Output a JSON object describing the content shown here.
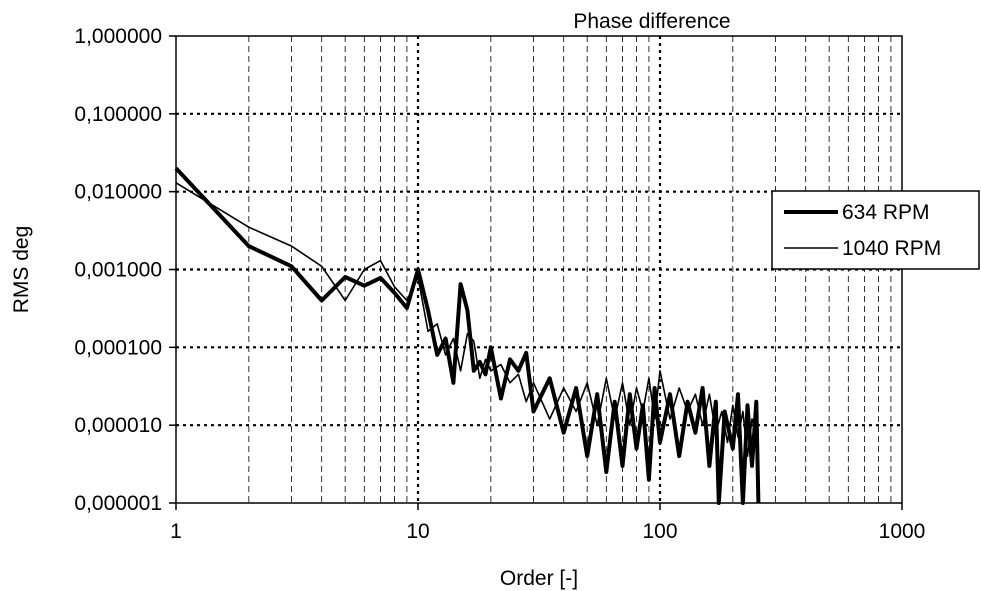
{
  "chart_data": {
    "type": "line",
    "title": "Phase difference",
    "xlabel": "Order [-]",
    "ylabel": "RMS deg",
    "x_scale": "log",
    "y_scale": "log",
    "xlim": [
      1,
      1000
    ],
    "ylim": [
      1e-06,
      1
    ],
    "x_ticks": [
      "1",
      "10",
      "100",
      "1000"
    ],
    "y_ticks": [
      "0,000001",
      "0,000010",
      "0,000100",
      "0,001000",
      "0,010000",
      "0,100000",
      "1,000000"
    ],
    "grid": true,
    "legend_position": "right",
    "series": [
      {
        "name": "634 RPM",
        "color": "#000000",
        "style": "thick",
        "points": [
          [
            1,
            0.02
          ],
          [
            2,
            0.002
          ],
          [
            3,
            0.0011
          ],
          [
            4,
            0.0004
          ],
          [
            5,
            0.0008
          ],
          [
            6,
            0.00062
          ],
          [
            7,
            0.00078
          ],
          [
            8,
            0.0005
          ],
          [
            9,
            0.00032
          ],
          [
            10,
            0.001
          ],
          [
            11,
            0.0003
          ],
          [
            12,
            8e-05
          ],
          [
            13,
            0.00013
          ],
          [
            14,
            3.5e-05
          ],
          [
            15,
            0.00065
          ],
          [
            16,
            0.0003
          ],
          [
            17,
            5e-05
          ],
          [
            18,
            6.5e-05
          ],
          [
            19,
            4.5e-05
          ],
          [
            20,
            0.0001
          ],
          [
            22,
            2.2e-05
          ],
          [
            24,
            7e-05
          ],
          [
            26,
            5e-05
          ],
          [
            28,
            8.5e-05
          ],
          [
            30,
            1.5e-05
          ],
          [
            35,
            4e-05
          ],
          [
            40,
            8e-06
          ],
          [
            45,
            3e-05
          ],
          [
            50,
            4e-06
          ],
          [
            55,
            2.5e-05
          ],
          [
            60,
            2.5e-06
          ],
          [
            65,
            2e-05
          ],
          [
            70,
            3e-06
          ],
          [
            75,
            2.5e-05
          ],
          [
            80,
            5e-06
          ],
          [
            85,
            1.8e-05
          ],
          [
            90,
            2e-06
          ],
          [
            95,
            3e-05
          ],
          [
            100,
            6e-06
          ],
          [
            110,
            2.5e-05
          ],
          [
            120,
            4e-06
          ],
          [
            130,
            2e-05
          ],
          [
            140,
            8e-06
          ],
          [
            150,
            3e-05
          ],
          [
            160,
            3e-06
          ],
          [
            170,
            2e-05
          ],
          [
            175,
            1e-06
          ],
          [
            185,
            1.5e-05
          ],
          [
            200,
            5e-06
          ],
          [
            210,
            2.5e-05
          ],
          [
            220,
            1e-06
          ],
          [
            230,
            1.8e-05
          ],
          [
            240,
            3e-06
          ],
          [
            250,
            2e-05
          ],
          [
            255,
            1e-06
          ]
        ]
      },
      {
        "name": "1040 RPM",
        "color": "#000000",
        "style": "thin",
        "points": [
          [
            1,
            0.013
          ],
          [
            2,
            0.0035
          ],
          [
            3,
            0.002
          ],
          [
            4,
            0.0011
          ],
          [
            5,
            0.0004
          ],
          [
            6,
            0.001
          ],
          [
            7,
            0.0013
          ],
          [
            8,
            0.0006
          ],
          [
            9,
            0.0004
          ],
          [
            10,
            0.0008
          ],
          [
            11,
            0.00016
          ],
          [
            12,
            0.0002
          ],
          [
            13,
            8e-05
          ],
          [
            14,
            0.00013
          ],
          [
            15,
            5e-05
          ],
          [
            16,
            0.00015
          ],
          [
            17,
            0.00012
          ],
          [
            18,
            4e-05
          ],
          [
            19,
            7e-05
          ],
          [
            20,
            5e-05
          ],
          [
            22,
            6e-05
          ],
          [
            24,
            3.5e-05
          ],
          [
            26,
            4.5e-05
          ],
          [
            28,
            2e-05
          ],
          [
            30,
            3.5e-05
          ],
          [
            35,
            1.2e-05
          ],
          [
            40,
            3e-05
          ],
          [
            45,
            1.5e-05
          ],
          [
            50,
            3.5e-05
          ],
          [
            55,
            1e-05
          ],
          [
            60,
            4e-05
          ],
          [
            65,
            1.2e-05
          ],
          [
            70,
            3.5e-05
          ],
          [
            75,
            1e-05
          ],
          [
            80,
            3e-05
          ],
          [
            85,
            1.5e-05
          ],
          [
            90,
            4e-05
          ],
          [
            95,
            1.2e-05
          ],
          [
            100,
            5e-05
          ],
          [
            110,
            1.2e-05
          ],
          [
            120,
            3e-05
          ],
          [
            130,
            1.5e-05
          ],
          [
            140,
            2.5e-05
          ],
          [
            150,
            1e-05
          ],
          [
            160,
            2.5e-05
          ],
          [
            170,
            8e-06
          ],
          [
            180,
            1.5e-05
          ],
          [
            190,
            6e-06
          ],
          [
            200,
            1.8e-05
          ],
          [
            210,
            7e-06
          ],
          [
            220,
            1.5e-05
          ],
          [
            230,
            4e-06
          ],
          [
            240,
            1.2e-05
          ],
          [
            250,
            8e-06
          ]
        ]
      }
    ]
  }
}
